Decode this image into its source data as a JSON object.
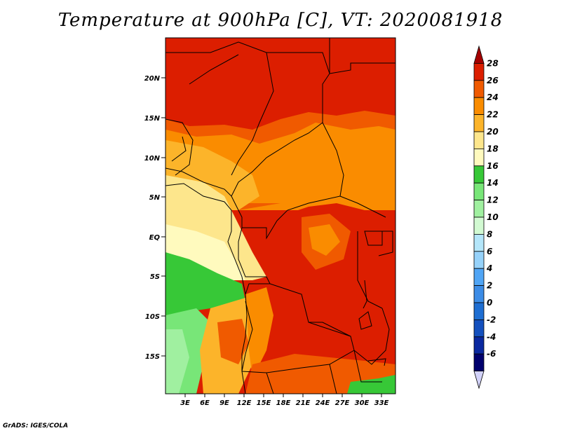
{
  "title": "Temperature at 900hPa [C], VT: 2020081918",
  "credit": "GrADS: IGES/COLA",
  "map": {
    "lat_ticks": [
      "20N",
      "15N",
      "10N",
      "5N",
      "EQ",
      "5S",
      "10S",
      "15S"
    ],
    "lon_ticks": [
      "3E",
      "6E",
      "9E",
      "12E",
      "15E",
      "18E",
      "21E",
      "24E",
      "27E",
      "30E",
      "33E"
    ]
  },
  "colorbar": {
    "labels": [
      "28",
      "26",
      "24",
      "22",
      "20",
      "18",
      "16",
      "14",
      "12",
      "10",
      "8",
      "6",
      "4",
      "2",
      "0",
      "-2",
      "-4",
      "-6"
    ],
    "colors": [
      "#a50000",
      "#dc1e00",
      "#f05a00",
      "#fa8c00",
      "#fcb42a",
      "#fde68c",
      "#fffabe",
      "#37c837",
      "#78e678",
      "#a0f0a0",
      "#d2fad2",
      "#b4e6fa",
      "#96d2fa",
      "#50a5f5",
      "#3c8ce6",
      "#1e6ed2",
      "#1450be",
      "#0a28a0",
      "#00006e",
      "#d2d2fa"
    ]
  }
}
